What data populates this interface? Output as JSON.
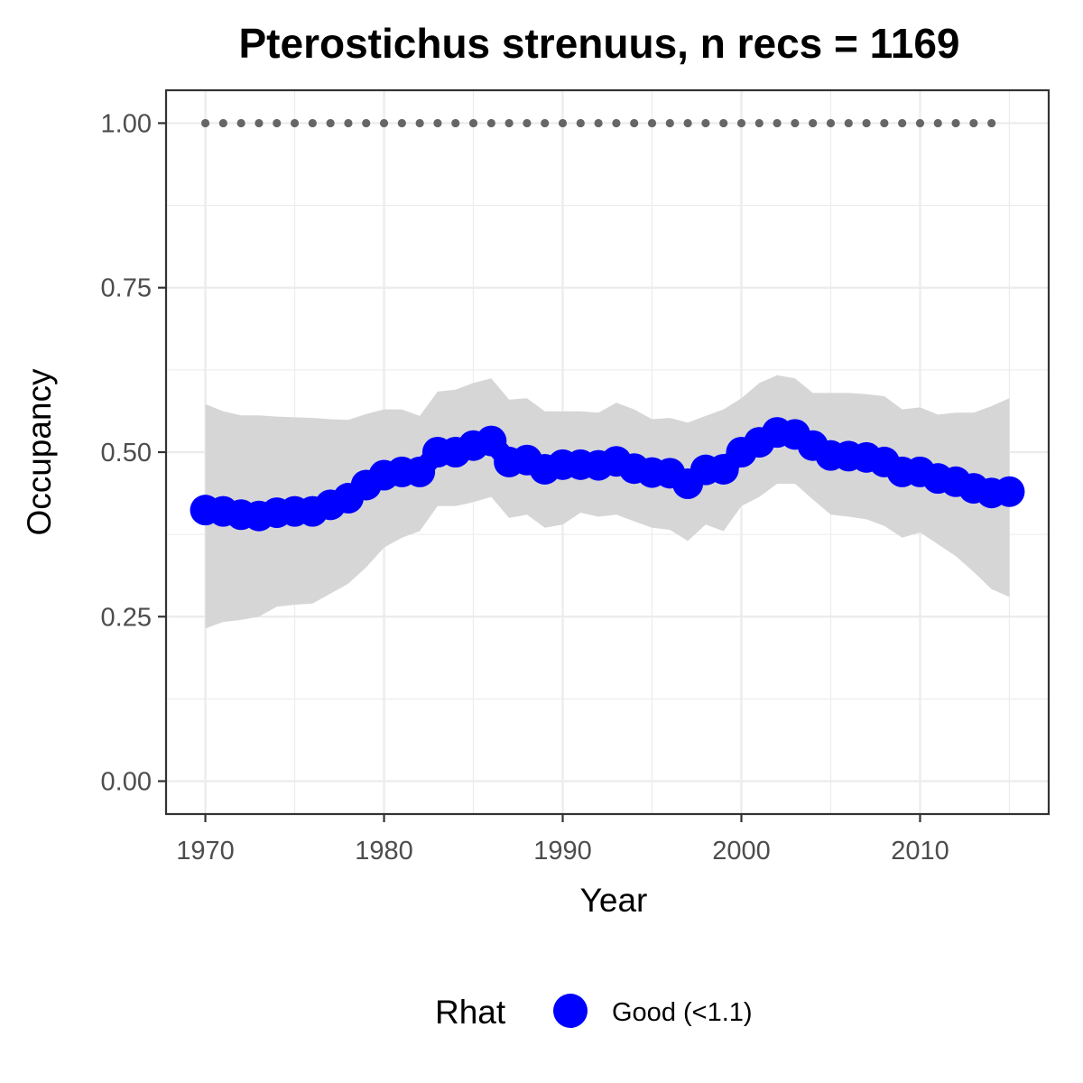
{
  "chart_data": {
    "type": "line",
    "title": "Pterostichus strenuus, n recs = 1169",
    "xlabel": "Year",
    "ylabel": "Occupancy",
    "xlim": [
      1967.8,
      2017.2
    ],
    "ylim": [
      -0.05,
      1.05
    ],
    "x_ticks": [
      1970,
      1980,
      1990,
      2000,
      2010
    ],
    "x_tick_labels": [
      "1970",
      "1980",
      "1990",
      "2000",
      "2010"
    ],
    "y_ticks": [
      0,
      0.25,
      0.5,
      0.75,
      1
    ],
    "y_tick_labels": [
      "0.00",
      "0.25",
      "0.50",
      "0.75",
      "1.00"
    ],
    "grid": true,
    "x": [
      1970,
      1971,
      1972,
      1973,
      1974,
      1975,
      1976,
      1977,
      1978,
      1979,
      1980,
      1981,
      1982,
      1983,
      1984,
      1985,
      1986,
      1987,
      1988,
      1989,
      1990,
      1991,
      1992,
      1993,
      1994,
      1995,
      1996,
      1997,
      1998,
      1999,
      2000,
      2001,
      2002,
      2003,
      2004,
      2005,
      2006,
      2007,
      2008,
      2009,
      2010,
      2011,
      2012,
      2013,
      2014,
      2015
    ],
    "series": [
      {
        "name": "Good (<1.1)",
        "color": "#0000ff",
        "values": [
          0.412,
          0.41,
          0.405,
          0.403,
          0.408,
          0.41,
          0.41,
          0.42,
          0.43,
          0.45,
          0.465,
          0.47,
          0.47,
          0.5,
          0.5,
          0.51,
          0.517,
          0.485,
          0.488,
          0.474,
          0.481,
          0.481,
          0.48,
          0.486,
          0.475,
          0.469,
          0.468,
          0.452,
          0.473,
          0.474,
          0.5,
          0.515,
          0.53,
          0.527,
          0.51,
          0.495,
          0.494,
          0.492,
          0.485,
          0.47,
          0.47,
          0.46,
          0.455,
          0.445,
          0.438,
          0.44
        ]
      }
    ],
    "ci_lower": [
      0.232,
      0.242,
      0.245,
      0.25,
      0.265,
      0.268,
      0.27,
      0.285,
      0.3,
      0.325,
      0.355,
      0.37,
      0.38,
      0.418,
      0.418,
      0.424,
      0.432,
      0.4,
      0.405,
      0.385,
      0.39,
      0.408,
      0.402,
      0.405,
      0.395,
      0.385,
      0.382,
      0.365,
      0.39,
      0.38,
      0.418,
      0.432,
      0.452,
      0.452,
      0.428,
      0.405,
      0.402,
      0.398,
      0.388,
      0.37,
      0.378,
      0.36,
      0.342,
      0.318,
      0.292,
      0.28
    ],
    "ci_upper": [
      0.573,
      0.562,
      0.556,
      0.556,
      0.554,
      0.553,
      0.552,
      0.55,
      0.549,
      0.558,
      0.565,
      0.565,
      0.555,
      0.592,
      0.595,
      0.605,
      0.612,
      0.58,
      0.582,
      0.562,
      0.562,
      0.562,
      0.56,
      0.575,
      0.565,
      0.55,
      0.552,
      0.545,
      0.555,
      0.565,
      0.582,
      0.605,
      0.617,
      0.612,
      0.59,
      0.59,
      0.59,
      0.588,
      0.585,
      0.565,
      0.568,
      0.557,
      0.56,
      0.56,
      0.57,
      0.582
    ],
    "ci_color": "#d6d6d6",
    "reference_line": {
      "y": 1.0,
      "x_start": 1970,
      "x_end": 2014,
      "color": "#666666",
      "style": "dotted"
    },
    "legend": {
      "title": "Rhat",
      "placement": "bottom",
      "entries": [
        {
          "label": "Good (<1.1)",
          "color": "#0000ff"
        }
      ]
    }
  }
}
